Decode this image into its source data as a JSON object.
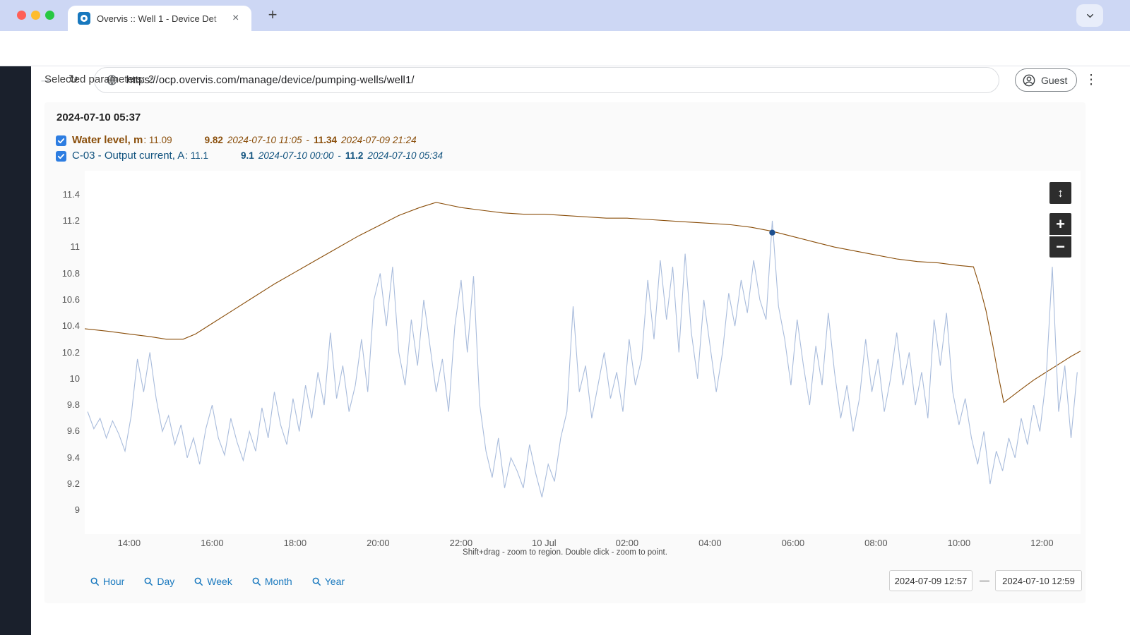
{
  "browser": {
    "tab_title": "Overvis :: Well 1 - Device Det",
    "url": "https://ocp.overvis.com/manage/device/pumping-wells/well1/",
    "guest_label": "Guest"
  },
  "icons": {
    "back": "←",
    "forward": "→",
    "reload": "↻",
    "kebab": "⋮",
    "close": "×",
    "new_tab": "+",
    "pan_vertical": "↕",
    "zoom_in": "+",
    "zoom_out": "−"
  },
  "page": {
    "selected_parameters": "Selected parameters: 2",
    "timestamp": "2024-07-10 05:37",
    "hint": "Shift+drag - zoom to region. Double click - zoom to point.",
    "params": [
      {
        "name": "Water level, m",
        "current_value": ": 11.09",
        "min_value": "9.82",
        "min_time": "2024-07-10 11:05",
        "value_separator": "-",
        "max_value": "11.34",
        "max_time": "2024-07-09 21:24",
        "color": "#8a4e0a",
        "checked": true
      },
      {
        "name": "C-03 - Output current, A",
        "current_value": ": 11.1",
        "min_value": "9.1",
        "min_time": "2024-07-10 00:00",
        "value_separator": "-",
        "max_value": "11.2",
        "max_time": "2024-07-10 05:34",
        "color": "#10527e",
        "checked": true
      }
    ],
    "range_buttons": [
      "Hour",
      "Day",
      "Week",
      "Month",
      "Year"
    ],
    "range_from": "2024-07-09 12:57",
    "range_separator": "—",
    "range_to": "2024-07-10 12:59"
  },
  "chart_data": {
    "type": "line",
    "title": "",
    "grid": false,
    "legend_position": "none",
    "x_unit_note": "t = hours since 2024-07-09 13:00",
    "axis": {
      "xmin": -0.07,
      "xmax": 23.93,
      "ymin": 8.82,
      "ymax": 11.58
    },
    "y_ticks": [
      "11.4",
      "11.2",
      "11",
      "10.8",
      "10.6",
      "10.4",
      "10.2",
      "10",
      "9.8",
      "9.6",
      "9.4",
      "9.2",
      "9"
    ],
    "x_ticks": [
      {
        "t": 1,
        "label": "14:00"
      },
      {
        "t": 3,
        "label": "16:00"
      },
      {
        "t": 5,
        "label": "18:00"
      },
      {
        "t": 7,
        "label": "20:00"
      },
      {
        "t": 9,
        "label": "22:00"
      },
      {
        "t": 11,
        "label": "10 Jul"
      },
      {
        "t": 13,
        "label": "02:00"
      },
      {
        "t": 15,
        "label": "04:00"
      },
      {
        "t": 17,
        "label": "06:00"
      },
      {
        "t": 19,
        "label": "08:00"
      },
      {
        "t": 21,
        "label": "10:00"
      },
      {
        "t": 23,
        "label": "12:00"
      }
    ],
    "series": [
      {
        "id": "water-level",
        "name": "Water level, m",
        "color": "#8a4e0a",
        "points": [
          [
            -0.07,
            10.38
          ],
          [
            0.5,
            10.36
          ],
          [
            1.0,
            10.34
          ],
          [
            1.5,
            10.32
          ],
          [
            1.9,
            10.3
          ],
          [
            2.3,
            10.3
          ],
          [
            2.6,
            10.34
          ],
          [
            3.0,
            10.42
          ],
          [
            3.5,
            10.52
          ],
          [
            4.0,
            10.62
          ],
          [
            4.5,
            10.72
          ],
          [
            5.0,
            10.81
          ],
          [
            5.5,
            10.9
          ],
          [
            6.0,
            10.99
          ],
          [
            6.5,
            11.08
          ],
          [
            7.0,
            11.16
          ],
          [
            7.5,
            11.24
          ],
          [
            8.0,
            11.3
          ],
          [
            8.4,
            11.34
          ],
          [
            8.7,
            11.32
          ],
          [
            9.0,
            11.3
          ],
          [
            9.5,
            11.28
          ],
          [
            10.0,
            11.26
          ],
          [
            10.5,
            11.25
          ],
          [
            11.0,
            11.25
          ],
          [
            11.5,
            11.24
          ],
          [
            12.0,
            11.23
          ],
          [
            12.5,
            11.22
          ],
          [
            13.0,
            11.22
          ],
          [
            13.5,
            11.21
          ],
          [
            14.0,
            11.2
          ],
          [
            14.5,
            11.19
          ],
          [
            15.0,
            11.18
          ],
          [
            15.5,
            11.17
          ],
          [
            16.0,
            11.15
          ],
          [
            16.5,
            11.12
          ],
          [
            17.0,
            11.08
          ],
          [
            17.5,
            11.04
          ],
          [
            18.0,
            11.0
          ],
          [
            18.5,
            10.97
          ],
          [
            19.0,
            10.94
          ],
          [
            19.5,
            10.91
          ],
          [
            20.0,
            10.89
          ],
          [
            20.5,
            10.88
          ],
          [
            21.0,
            10.86
          ],
          [
            21.35,
            10.85
          ],
          [
            21.5,
            10.7
          ],
          [
            21.65,
            10.52
          ],
          [
            21.8,
            10.28
          ],
          [
            21.95,
            10.02
          ],
          [
            22.08,
            9.82
          ],
          [
            22.25,
            9.86
          ],
          [
            22.5,
            9.92
          ],
          [
            22.8,
            9.99
          ],
          [
            23.1,
            10.05
          ],
          [
            23.4,
            10.11
          ],
          [
            23.7,
            10.17
          ],
          [
            23.93,
            10.21
          ]
        ]
      },
      {
        "id": "output-current",
        "name": "C-03 - Output current, A",
        "color": "#a9bcdc",
        "t0": 0,
        "dt": 0.15,
        "values": [
          9.75,
          9.62,
          9.7,
          9.55,
          9.68,
          9.58,
          9.45,
          9.72,
          10.15,
          9.9,
          10.2,
          9.85,
          9.6,
          9.72,
          9.5,
          9.65,
          9.4,
          9.55,
          9.35,
          9.62,
          9.8,
          9.55,
          9.42,
          9.7,
          9.52,
          9.38,
          9.6,
          9.45,
          9.78,
          9.55,
          9.9,
          9.65,
          9.5,
          9.85,
          9.6,
          9.95,
          9.7,
          10.05,
          9.8,
          10.35,
          9.85,
          10.1,
          9.75,
          9.95,
          10.3,
          9.9,
          10.6,
          10.8,
          10.4,
          10.85,
          10.2,
          9.95,
          10.45,
          10.1,
          10.6,
          10.25,
          9.9,
          10.15,
          9.75,
          10.4,
          10.75,
          10.2,
          10.78,
          9.8,
          9.45,
          9.25,
          9.55,
          9.17,
          9.4,
          9.3,
          9.17,
          9.5,
          9.28,
          9.1,
          9.35,
          9.22,
          9.55,
          9.75,
          10.55,
          9.9,
          10.1,
          9.7,
          9.95,
          10.2,
          9.85,
          10.05,
          9.75,
          10.3,
          9.95,
          10.15,
          10.75,
          10.3,
          10.9,
          10.45,
          10.85,
          10.2,
          10.95,
          10.35,
          10.0,
          10.6,
          10.25,
          9.9,
          10.2,
          10.65,
          10.4,
          10.75,
          10.5,
          10.9,
          10.6,
          10.45,
          11.2,
          10.55,
          10.3,
          9.95,
          10.45,
          10.1,
          9.8,
          10.25,
          9.95,
          10.5,
          10.05,
          9.7,
          9.95,
          9.6,
          9.85,
          10.3,
          9.9,
          10.15,
          9.75,
          10.0,
          10.35,
          9.95,
          10.2,
          9.8,
          10.05,
          9.7,
          10.45,
          10.1,
          10.5,
          9.9,
          9.65,
          9.85,
          9.55,
          9.35,
          9.6,
          9.2,
          9.45,
          9.3,
          9.55,
          9.4,
          9.7,
          9.5,
          9.8,
          9.6,
          10.0,
          10.85,
          9.75,
          10.1,
          9.55,
          10.05
        ]
      }
    ],
    "marker": {
      "series": "water-level",
      "t": 16.5,
      "v": 11.11,
      "color": "#1c4f8f"
    }
  }
}
